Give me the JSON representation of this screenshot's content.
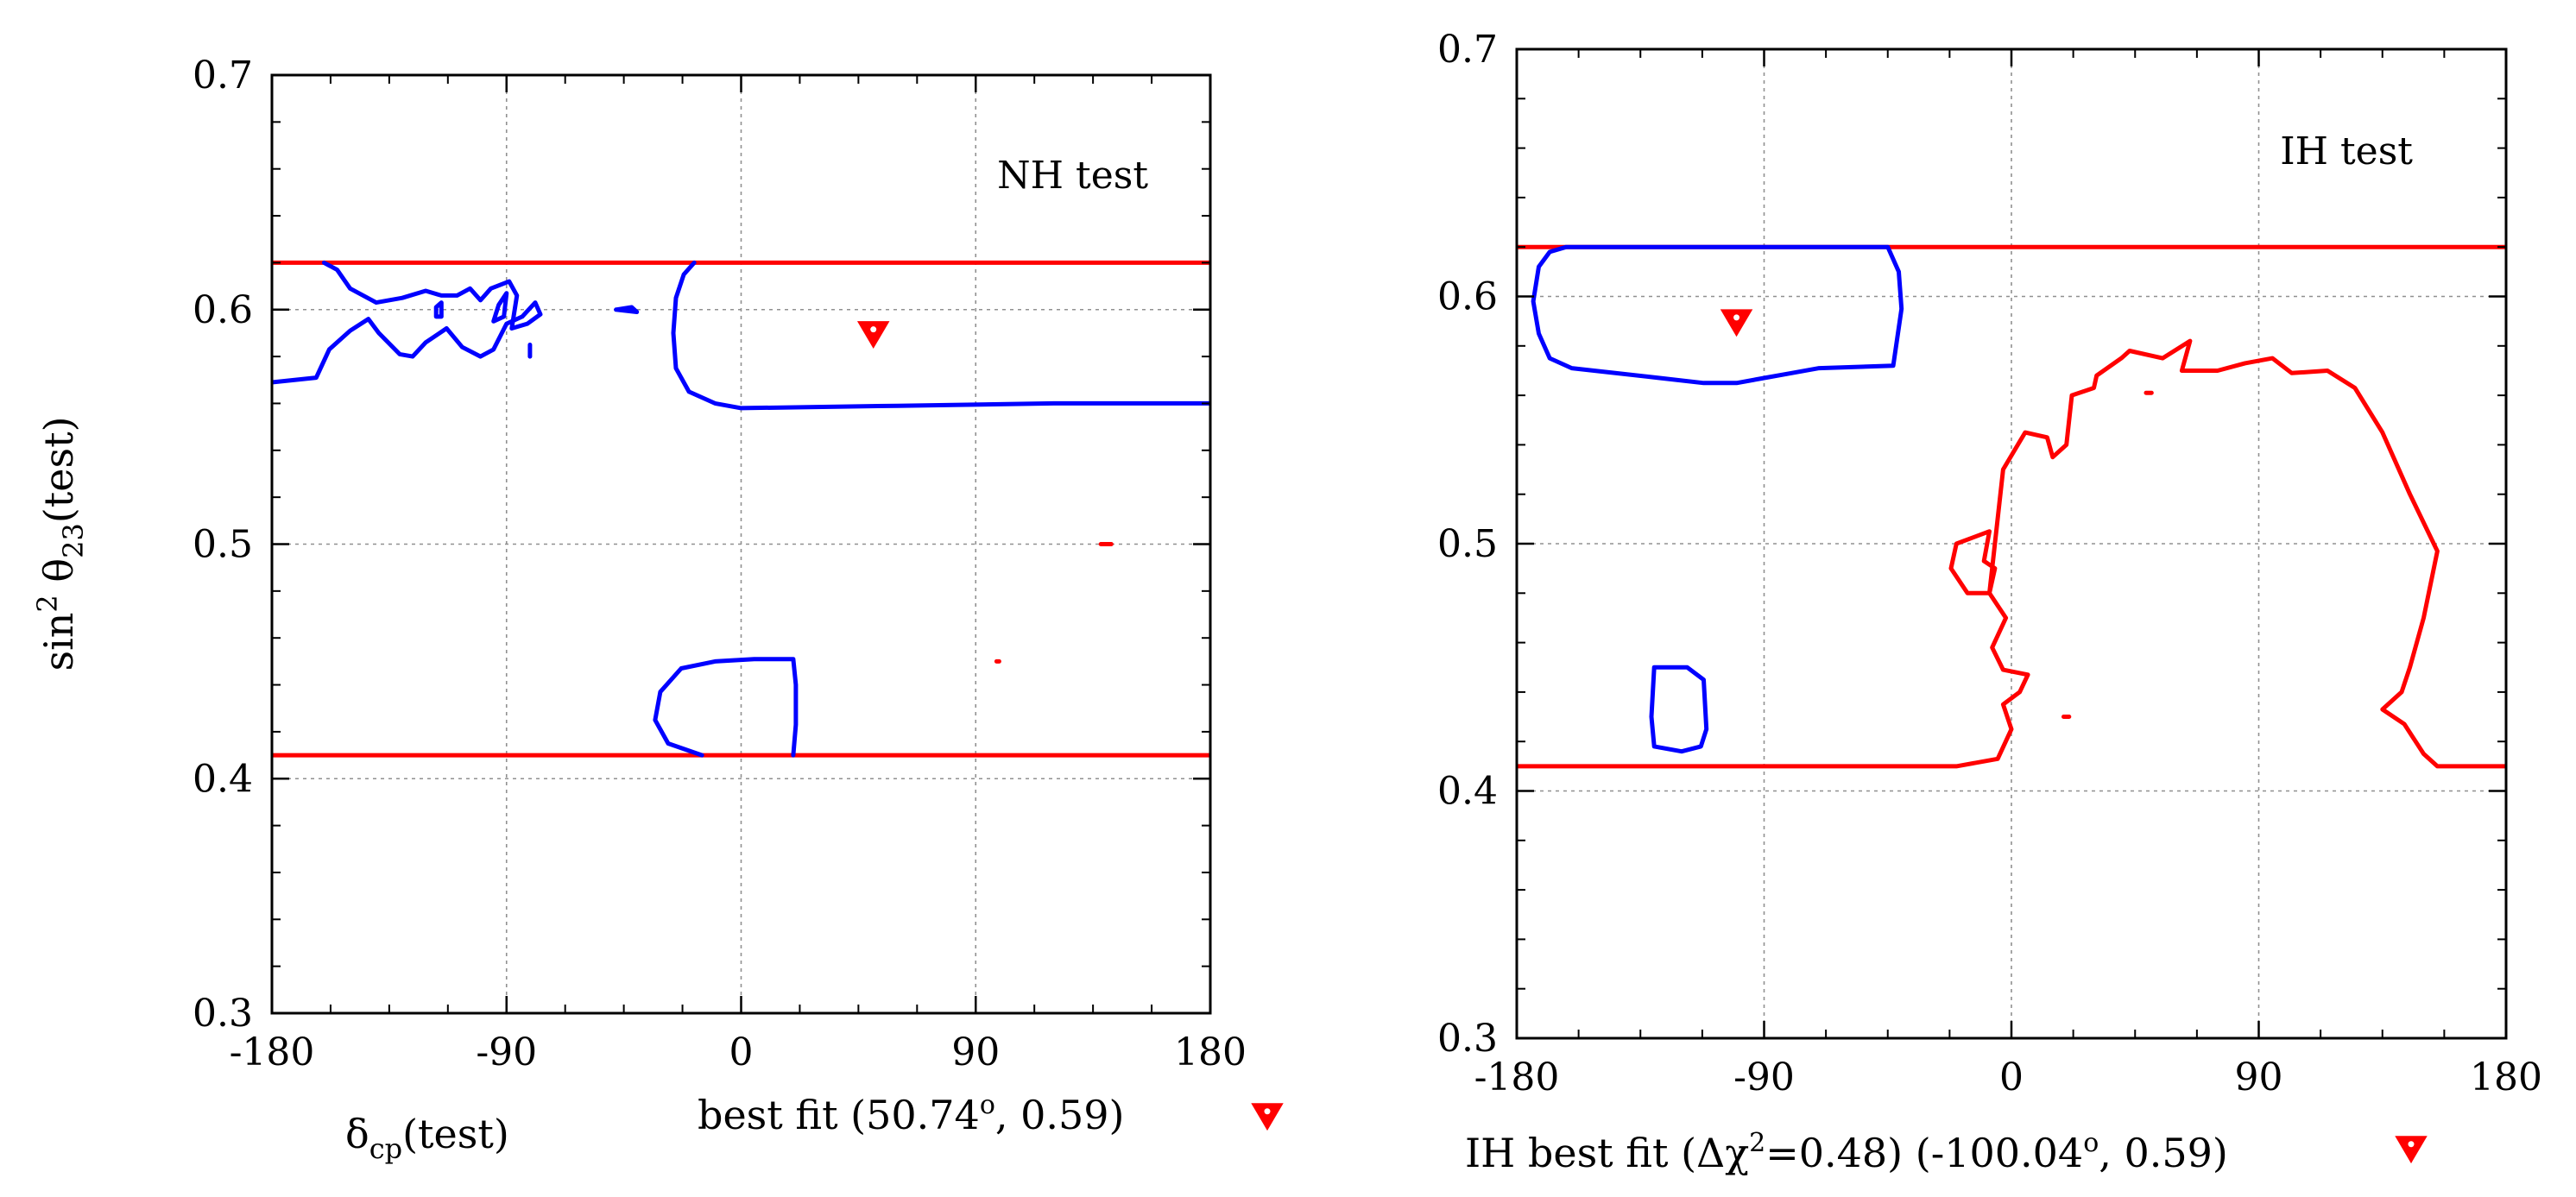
{
  "chart_data": [
    {
      "type": "contour",
      "panel": "left",
      "annotation": "NH test",
      "xlabel_main": "δ",
      "xlabel_sub": "cp",
      "xlabel_tail": "(test)",
      "ylabel_main": "sin",
      "ylabel_sup": "2",
      "ylabel_theta": " θ",
      "ylabel_sub": "23",
      "ylabel_tail": "(test)",
      "xlim": [
        -180,
        180
      ],
      "ylim": [
        0.3,
        0.7
      ],
      "xticks": [
        -180,
        -90,
        0,
        90,
        180
      ],
      "yticks": [
        0.3,
        0.4,
        0.5,
        0.6,
        0.7
      ],
      "xtick_labels": [
        "-180",
        "-90",
        "0",
        "90",
        "180"
      ],
      "ytick_labels": [
        "0.3",
        "0.4",
        "0.5",
        "0.6",
        "0.7"
      ],
      "grid": true,
      "best_fit_label_pre": "best fit (50.74",
      "best_fit_label_sup": "o",
      "best_fit_label_post": ", 0.59)",
      "best_fit_point": [
        50.74,
        0.59
      ],
      "series": [
        {
          "name": "red-top",
          "color": "#ff0000",
          "points": [
            [
              -180,
              0.62
            ],
            [
              180,
              0.62
            ]
          ]
        },
        {
          "name": "red-bottom",
          "color": "#ff0000",
          "points": [
            [
              -180,
              0.41
            ],
            [
              180,
              0.41
            ]
          ]
        },
        {
          "name": "red-dot-1",
          "color": "#ff0000",
          "points": [
            [
              138,
              0.5
            ],
            [
              142,
              0.5
            ]
          ]
        },
        {
          "name": "red-dot-2",
          "color": "#ff0000",
          "points": [
            [
              98,
              0.45
            ],
            [
              99,
              0.45
            ]
          ]
        },
        {
          "name": "blue-left",
          "color": "#0000ff",
          "points": [
            [
              -180,
              0.569
            ],
            [
              -163,
              0.571
            ],
            [
              -158,
              0.583
            ],
            [
              -150,
              0.591
            ],
            [
              -143,
              0.596
            ],
            [
              -139,
              0.59
            ],
            [
              -131,
              0.581
            ],
            [
              -126,
              0.58
            ],
            [
              -121,
              0.586
            ],
            [
              -113,
              0.592
            ],
            [
              -107,
              0.584
            ],
            [
              -100,
              0.58
            ],
            [
              -95,
              0.583
            ],
            [
              -90,
              0.594
            ],
            [
              -84,
              0.597
            ],
            [
              -79,
              0.603
            ],
            [
              -77,
              0.598
            ],
            [
              -82,
              0.594
            ],
            [
              -88,
              0.592
            ],
            [
              -86,
              0.606
            ],
            [
              -89,
              0.612
            ],
            [
              -96,
              0.609
            ],
            [
              -100,
              0.604
            ],
            [
              -104,
              0.609
            ],
            [
              -109,
              0.606
            ],
            [
              -115,
              0.606
            ],
            [
              -121,
              0.608
            ],
            [
              -130,
              0.605
            ],
            [
              -140,
              0.603
            ],
            [
              -150,
              0.609
            ],
            [
              -155,
              0.617
            ],
            [
              -160,
              0.62
            ]
          ]
        },
        {
          "name": "blue-left-2",
          "color": "#0000ff",
          "points": [
            [
              -93,
              0.602
            ],
            [
              -90,
              0.607
            ],
            [
              -91,
              0.597
            ],
            [
              -95,
              0.595
            ],
            [
              -93,
              0.602
            ]
          ]
        },
        {
          "name": "blue-tiny-1",
          "color": "#0000ff",
          "points": [
            [
              -117,
              0.601
            ],
            [
              -115,
              0.603
            ],
            [
              -115,
              0.597
            ],
            [
              -117,
              0.597
            ],
            [
              -117,
              0.601
            ]
          ]
        },
        {
          "name": "blue-tiny-2",
          "color": "#0000ff",
          "points": [
            [
              -48,
              0.6
            ],
            [
              -42,
              0.601
            ],
            [
              -40,
              0.599
            ],
            [
              -48,
              0.6
            ]
          ]
        },
        {
          "name": "blue-tiny-3",
          "color": "#0000ff",
          "points": [
            [
              -81,
              0.585
            ],
            [
              -81,
              0.58
            ]
          ]
        },
        {
          "name": "blue-right",
          "color": "#0000ff",
          "points": [
            [
              180,
              0.56
            ],
            [
              120,
              0.56
            ],
            [
              60,
              0.559
            ],
            [
              0,
              0.558
            ],
            [
              -10,
              0.56
            ],
            [
              -20,
              0.565
            ],
            [
              -25,
              0.575
            ],
            [
              -26,
              0.59
            ],
            [
              -25,
              0.605
            ],
            [
              -22,
              0.615
            ],
            [
              -18,
              0.62
            ]
          ]
        },
        {
          "name": "blue-bottom",
          "color": "#0000ff",
          "points": [
            [
              -15,
              0.41
            ],
            [
              -28,
              0.415
            ],
            [
              -33,
              0.425
            ],
            [
              -31,
              0.437
            ],
            [
              -23,
              0.447
            ],
            [
              -10,
              0.45
            ],
            [
              5,
              0.451
            ],
            [
              20,
              0.451
            ],
            [
              21,
              0.44
            ],
            [
              21,
              0.423
            ],
            [
              20,
              0.41
            ]
          ]
        }
      ]
    },
    {
      "type": "contour",
      "panel": "right",
      "annotation": "IH test",
      "xlabel_main": "",
      "xlim": [
        -180,
        180
      ],
      "ylim": [
        0.3,
        0.7
      ],
      "xticks": [
        -180,
        -90,
        0,
        90,
        180
      ],
      "yticks": [
        0.3,
        0.4,
        0.5,
        0.6,
        0.7
      ],
      "xtick_labels": [
        "-180",
        "-90",
        "0",
        "90",
        "180"
      ],
      "ytick_labels": [
        "0.3",
        "0.4",
        "0.5",
        "0.6",
        "0.7"
      ],
      "grid": true,
      "best_fit_label_pre": "IH best fit (Δχ",
      "best_fit_label_sup": "2",
      "best_fit_label_mid": "=0.48) (-100.04",
      "best_fit_label_sup2": "o",
      "best_fit_label_post": ", 0.59)",
      "best_fit_point": [
        -100.04,
        0.59
      ],
      "series": [
        {
          "name": "red-top",
          "color": "#ff0000",
          "points": [
            [
              -180,
              0.62
            ],
            [
              180,
              0.62
            ]
          ]
        },
        {
          "name": "red-contour",
          "color": "#ff0000",
          "points": [
            [
              -180,
              0.41
            ],
            [
              -20,
              0.41
            ],
            [
              -5,
              0.413
            ],
            [
              0,
              0.425
            ],
            [
              -3,
              0.435
            ],
            [
              3,
              0.44
            ],
            [
              6,
              0.447
            ],
            [
              -3,
              0.449
            ],
            [
              -7,
              0.458
            ],
            [
              -2,
              0.47
            ],
            [
              -8,
              0.48
            ],
            [
              -6,
              0.49
            ],
            [
              -10,
              0.493
            ],
            [
              -8,
              0.505
            ],
            [
              -20,
              0.5
            ],
            [
              -22,
              0.49
            ],
            [
              -16,
              0.48
            ],
            [
              -8,
              0.48
            ],
            [
              -3,
              0.53
            ],
            [
              5,
              0.545
            ],
            [
              13,
              0.543
            ],
            [
              15,
              0.535
            ],
            [
              20,
              0.54
            ],
            [
              22,
              0.56
            ],
            [
              30,
              0.563
            ],
            [
              31,
              0.568
            ],
            [
              40,
              0.575
            ],
            [
              43,
              0.578
            ],
            [
              55,
              0.575
            ],
            [
              65,
              0.582
            ],
            [
              62,
              0.57
            ],
            [
              75,
              0.57
            ],
            [
              85,
              0.573
            ],
            [
              95,
              0.575
            ],
            [
              102,
              0.569
            ],
            [
              115,
              0.57
            ],
            [
              125,
              0.563
            ],
            [
              135,
              0.545
            ],
            [
              145,
              0.52
            ],
            [
              155,
              0.497
            ],
            [
              150,
              0.47
            ],
            [
              145,
              0.45
            ],
            [
              142,
              0.44
            ],
            [
              135,
              0.433
            ],
            [
              143,
              0.427
            ],
            [
              150,
              0.415
            ],
            [
              155,
              0.41
            ],
            [
              180,
              0.41
            ]
          ]
        },
        {
          "name": "red-dot-1",
          "color": "#ff0000",
          "points": [
            [
              49,
              0.561
            ],
            [
              51,
              0.561
            ]
          ]
        },
        {
          "name": "red-dot-2",
          "color": "#ff0000",
          "points": [
            [
              19,
              0.43
            ],
            [
              21,
              0.43
            ]
          ]
        },
        {
          "name": "blue-upper",
          "color": "#0000ff",
          "points": [
            [
              -162,
              0.62
            ],
            [
              -45,
              0.62
            ],
            [
              -41,
              0.61
            ],
            [
              -40,
              0.595
            ],
            [
              -43,
              0.572
            ],
            [
              -70,
              0.571
            ],
            [
              -80,
              0.569
            ],
            [
              -90,
              0.567
            ],
            [
              -100,
              0.565
            ],
            [
              -112,
              0.565
            ],
            [
              -128,
              0.567
            ],
            [
              -160,
              0.571
            ],
            [
              -168,
              0.575
            ],
            [
              -172,
              0.585
            ],
            [
              -174,
              0.598
            ],
            [
              -172,
              0.612
            ],
            [
              -168,
              0.618
            ],
            [
              -162,
              0.62
            ]
          ]
        },
        {
          "name": "blue-lower",
          "color": "#0000ff",
          "points": [
            [
              -130,
              0.45
            ],
            [
              -118,
              0.45
            ],
            [
              -112,
              0.445
            ],
            [
              -111,
              0.425
            ],
            [
              -113,
              0.418
            ],
            [
              -120,
              0.416
            ],
            [
              -130,
              0.418
            ],
            [
              -131,
              0.43
            ],
            [
              -130,
              0.45
            ]
          ]
        }
      ]
    }
  ]
}
